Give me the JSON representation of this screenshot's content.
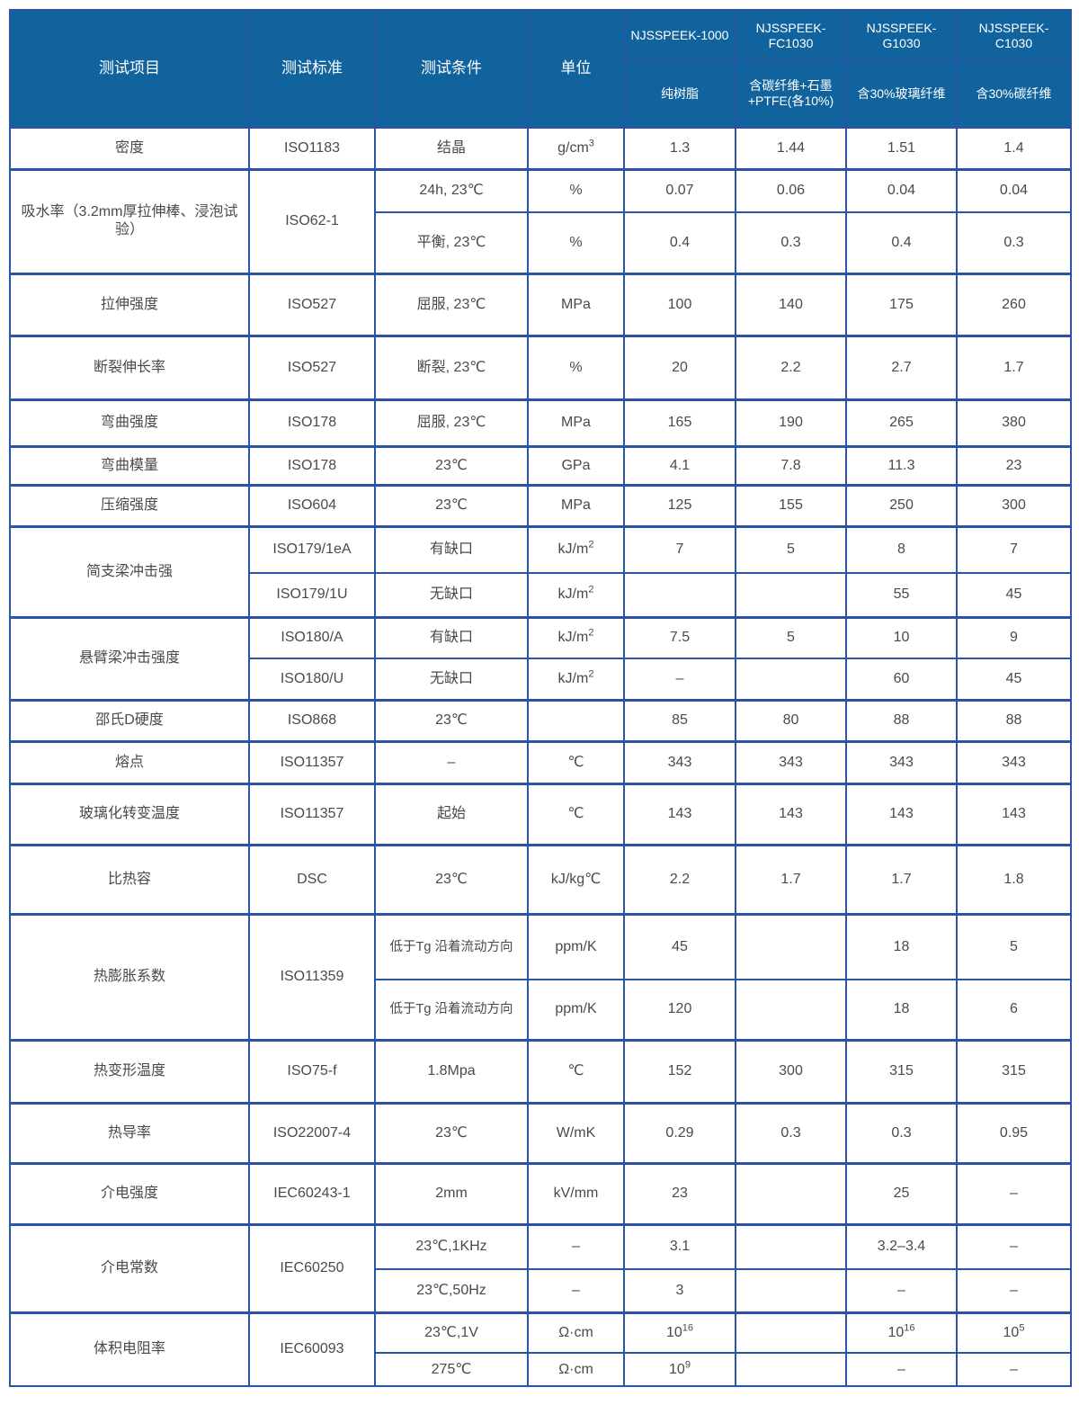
{
  "header": {
    "item": "测试项目",
    "standard": "测试标准",
    "condition": "测试条件",
    "unit": "单位",
    "products": [
      {
        "name": "NJSSPEEK-1000",
        "desc": "纯树脂"
      },
      {
        "name": "NJSSPEEK-FC1030",
        "desc": "含碳纤维+石墨+PTFE(各10%)"
      },
      {
        "name": "NJSSPEEK-G1030",
        "desc": "含30%玻璃纤维"
      },
      {
        "name": "NJSSPEEK-C1030",
        "desc": "含30%碳纤维"
      }
    ]
  },
  "colors": {
    "header_bg": "#11639e",
    "border": "#2a55a5",
    "text": "#4a4a4a"
  },
  "groups": [
    {
      "item": "密度",
      "standard": "ISO1183",
      "rows": [
        {
          "cond": "结晶",
          "unit": {
            "t": "g/cm",
            "sup": "3"
          },
          "values": [
            "1.3",
            "1.44",
            "1.51",
            "1.4"
          ]
        }
      ]
    },
    {
      "item": "吸水率（3.2mm厚拉伸棒、浸泡试验）",
      "standard": "ISO62-1",
      "rows": [
        {
          "cond": "24h, 23℃",
          "unit": "%",
          "values": [
            "0.07",
            "0.06",
            "0.04",
            "0.04"
          ]
        },
        {
          "cond": "平衡, 23℃",
          "unit": "%",
          "values": [
            "0.4",
            "0.3",
            "0.4",
            "0.3"
          ]
        }
      ]
    },
    {
      "item": "拉伸强度",
      "standard": "ISO527",
      "rows": [
        {
          "cond": "屈服, 23℃",
          "unit": "MPa",
          "values": [
            "100",
            "140",
            "175",
            "260"
          ]
        }
      ]
    },
    {
      "item": "断裂伸长率",
      "standard": "ISO527",
      "rows": [
        {
          "cond": "断裂, 23℃",
          "unit": "%",
          "values": [
            "20",
            "2.2",
            "2.7",
            "1.7"
          ]
        }
      ]
    },
    {
      "item": "弯曲强度",
      "standard": "ISO178",
      "rows": [
        {
          "cond": "屈服, 23℃",
          "unit": "MPa",
          "values": [
            "165",
            "190",
            "265",
            "380"
          ]
        }
      ]
    },
    {
      "item": "弯曲模量",
      "standard": "ISO178",
      "rows": [
        {
          "cond": "23℃",
          "unit": "GPa",
          "values": [
            "4.1",
            "7.8",
            "11.3",
            "23"
          ]
        }
      ]
    },
    {
      "item": "压缩强度",
      "standard": "ISO604",
      "rows": [
        {
          "cond": "23℃",
          "unit": "MPa",
          "values": [
            "125",
            "155",
            "250",
            "300"
          ]
        }
      ]
    },
    {
      "item": "简支梁冲击强",
      "rows": [
        {
          "standard": "ISO179/1eA",
          "cond": "有缺口",
          "unit": {
            "t": "kJ/m",
            "sup": "2"
          },
          "values": [
            "7",
            "5",
            "8",
            "7"
          ]
        },
        {
          "standard": "ISO179/1U",
          "cond": "无缺口",
          "unit": {
            "t": "kJ/m",
            "sup": "2"
          },
          "values": [
            "",
            "",
            "55",
            "45"
          ]
        }
      ]
    },
    {
      "item": "悬臂梁冲击强度",
      "rows": [
        {
          "standard": "ISO180/A",
          "cond": "有缺口",
          "unit": {
            "t": "kJ/m",
            "sup": "2"
          },
          "values": [
            "7.5",
            "5",
            "10",
            "9"
          ]
        },
        {
          "standard": "ISO180/U",
          "cond": "无缺口",
          "unit": {
            "t": "kJ/m",
            "sup": "2"
          },
          "values": [
            "–",
            "",
            "60",
            "45"
          ]
        }
      ]
    },
    {
      "item": "邵氏D硬度",
      "standard": "ISO868",
      "rows": [
        {
          "cond": "23℃",
          "unit": "",
          "values": [
            "85",
            "80",
            "88",
            "88"
          ]
        }
      ]
    },
    {
      "item": "熔点",
      "standard": "ISO11357",
      "rows": [
        {
          "cond": "–",
          "unit": "℃",
          "values": [
            "343",
            "343",
            "343",
            "343"
          ]
        }
      ]
    },
    {
      "item": "玻璃化转变温度",
      "standard": "ISO11357",
      "rows": [
        {
          "cond": "起始",
          "unit": "℃",
          "values": [
            "143",
            "143",
            "143",
            "143"
          ]
        }
      ]
    },
    {
      "item": "比热容",
      "standard": "DSC",
      "rows": [
        {
          "cond": "23℃",
          "unit": "kJ/kg℃",
          "values": [
            "2.2",
            "1.7",
            "1.7",
            "1.8"
          ]
        }
      ]
    },
    {
      "item": "热膨胀系数",
      "standard": "ISO11359",
      "rows": [
        {
          "cond": "低于Tg 沿着流动方向",
          "unit": "ppm/K",
          "values": [
            "45",
            "",
            "18",
            "5"
          ]
        },
        {
          "cond": "低于Tg 沿着流动方向",
          "unit": "ppm/K",
          "values": [
            "120",
            "",
            "18",
            "6"
          ]
        }
      ]
    },
    {
      "item": "热变形温度",
      "standard": "ISO75-f",
      "rows": [
        {
          "cond": "1.8Mpa",
          "unit": "℃",
          "values": [
            "152",
            "300",
            "315",
            "315"
          ]
        }
      ]
    },
    {
      "item": "热导率",
      "standard": "ISO22007-4",
      "rows": [
        {
          "cond": "23℃",
          "unit": "W/mK",
          "values": [
            "0.29",
            "0.3",
            "0.3",
            "0.95"
          ]
        }
      ]
    },
    {
      "item": "介电强度",
      "standard": "IEC60243-1",
      "rows": [
        {
          "cond": "2mm",
          "unit": "kV/mm",
          "values": [
            "23",
            "",
            "25",
            "–"
          ]
        }
      ]
    },
    {
      "item": "介电常数",
      "standard": "IEC60250",
      "rows": [
        {
          "cond": "23℃,1KHz",
          "unit": "–",
          "values": [
            "3.1",
            "",
            "3.2–3.4",
            "–"
          ]
        },
        {
          "cond": "23℃,50Hz",
          "unit": "–",
          "values": [
            "3",
            "",
            "–",
            "–"
          ]
        }
      ]
    },
    {
      "item": "体积电阻率",
      "standard": "IEC60093",
      "rows": [
        {
          "cond": "23℃,1V",
          "unit": "Ω·cm",
          "values": [
            {
              "t": "10",
              "sup": "16"
            },
            "",
            {
              "t": "10",
              "sup": "16"
            },
            {
              "t": "10",
              "sup": "5"
            }
          ]
        },
        {
          "cond": "275℃",
          "unit": "Ω·cm",
          "values": [
            {
              "t": "10",
              "sup": "9"
            },
            "",
            "–",
            "–"
          ]
        }
      ]
    }
  ]
}
